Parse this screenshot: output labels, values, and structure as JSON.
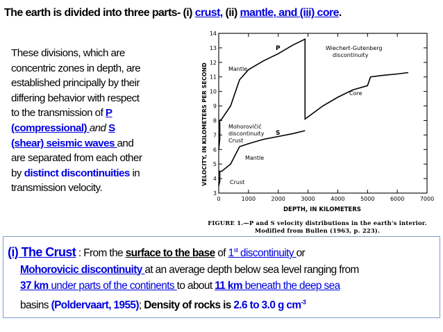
{
  "title": {
    "prefix": "The earth is divided into three parts-",
    "p1": " (i) ",
    "crust": "crust,",
    "p2": " (ii) ",
    "mantle": "mantle, and (iii) core",
    "end": "."
  },
  "left_paragraph": {
    "l1": "These divisions, which are",
    "l2": "concentric zones in depth, are",
    "l3": "established principally by their",
    "l4": "differing behavior with respect",
    "l5a": "to the transmission of ",
    "l5b": "P",
    "l6a": "(compressional) ",
    "l6b": "and ",
    "l6c": "S",
    "l7a": "(shear) seismic waves ",
    "l7b": "and",
    "l8": "are separated  from each other",
    "l9a": "by ",
    "l9b": "distinct discontinuities",
    "l9c": " in",
    "l10": "transmission velocity."
  },
  "figure": {
    "ylabel": "VELOCITY, IN KILOMETERS PER SECOND",
    "xlabel": "DEPTH, IN KILOMETERS",
    "y_ticks": [
      "3",
      "4",
      "5",
      "6",
      "7",
      "8",
      "9",
      "10",
      "11",
      "12",
      "13",
      "14"
    ],
    "x_ticks": [
      "0",
      "1000",
      "2000",
      "3000",
      "4000",
      "5000",
      "6000",
      "7000"
    ],
    "label_p": "P",
    "label_s": "S",
    "label_mantle_p": "Mantle",
    "label_mantle_s": "Mantle",
    "label_moho": "Mohorovičić",
    "label_moho2": "discontinuity",
    "label_crust_p": "Crust",
    "label_crust_s": "Crust",
    "label_wg1": "Wiechert-Gutenberg",
    "label_wg2": "discontinuity",
    "label_core": "Core",
    "caption_1": "FIGURE 1.—P and S velocity distributions in the earth's interior.",
    "caption_2": "Modified from Bullen (1963, p. 223)."
  },
  "chart_data": {
    "type": "line",
    "title": "",
    "xlabel": "DEPTH, IN KILOMETERS",
    "ylabel": "VELOCITY, IN KILOMETERS PER SECOND",
    "xlim": [
      0,
      7000
    ],
    "ylim": [
      3,
      14
    ],
    "series": [
      {
        "name": "P",
        "x": [
          0,
          35,
          35,
          100,
          400,
          700,
          1000,
          1500,
          2000,
          2500,
          2900,
          2900,
          3500,
          4000,
          4500,
          5000,
          5100,
          5500,
          6000,
          6371
        ],
        "y": [
          6.0,
          6.7,
          8.0,
          8.1,
          9.0,
          10.8,
          11.5,
          12.1,
          12.6,
          13.2,
          13.6,
          8.1,
          9.0,
          9.6,
          10.1,
          10.4,
          11.0,
          11.1,
          11.2,
          11.3
        ]
      },
      {
        "name": "S",
        "x": [
          0,
          35,
          35,
          100,
          400,
          700,
          1000,
          1500,
          2000,
          2500,
          2900
        ],
        "y": [
          3.5,
          3.8,
          4.5,
          4.5,
          5.0,
          6.2,
          6.4,
          6.7,
          6.9,
          7.1,
          7.3
        ]
      }
    ]
  },
  "box": {
    "crust_heading": "(i) The Crust",
    "t1": "  :  From the ",
    "t2": "surface to the base",
    "t3": " of ",
    "t4": "1",
    "t4sup": "st",
    "t5": " discontinuity ",
    "t6": "  or",
    "t7": "Mohorovicic discontinuity ",
    "t8": " at an average depth below sea level ranging from",
    "t9": "37 km",
    "t10": " under parts of the continents ",
    "t11": "to about ",
    "t12": "11 km",
    "t13": " beneath  the deep sea",
    "t14": "basins ",
    "t15": "(Poldervaart, 1955)",
    "t16": "; ",
    "t17": "Density of rocks is ",
    "t18": "2.6 to 3.0 g cm",
    "t18sup": "-3"
  }
}
